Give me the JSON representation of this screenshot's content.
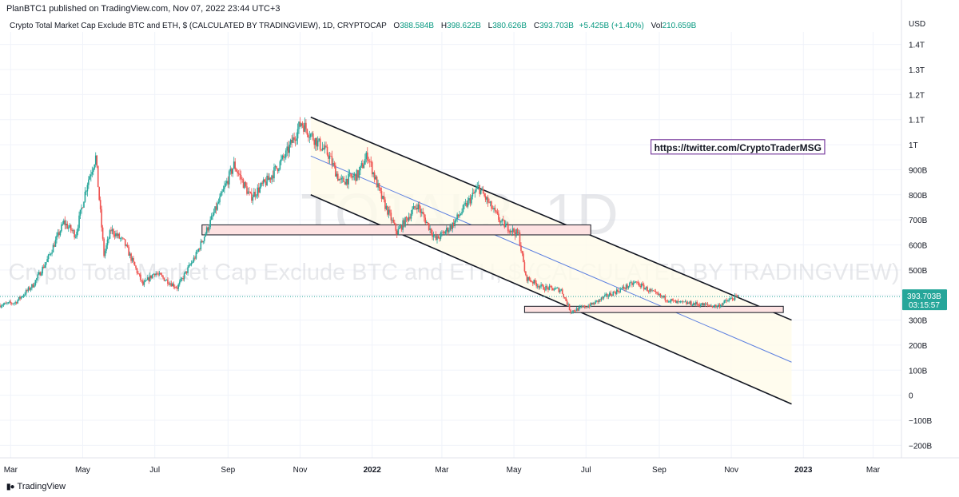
{
  "publisher": "PlanBTC1 published on TradingView.com, Nov 07, 2022 23:44 UTC+3",
  "legend": {
    "title": "Crypto Total Market Cap Exclude BTC and ETH, $ (CALCULATED BY TRADINGVIEW), 1D, CRYPTOCAP",
    "o_label": "O",
    "o_value": "388.584B",
    "h_label": "H",
    "h_value": "398.622B",
    "l_label": "L",
    "l_value": "380.626B",
    "c_label": "C",
    "c_value": "393.703B",
    "change": "+5.425B (+1.40%)",
    "vol_label": "Vol",
    "vol_value": "210.659B"
  },
  "footer": {
    "brand": "TradingView"
  },
  "colors": {
    "up": "#26a69a",
    "down": "#ef5350",
    "channel_line": "#131722",
    "midline": "#5b7fe0",
    "channel_fill": "#fffbea",
    "zone_fill": "#fde2e2",
    "price_label_bg": "#26a69a",
    "annotation_border": "#7b3fa0"
  },
  "chart_data": {
    "type": "candlestick",
    "title": "Crypto Total Market Cap Exclude BTC and ETH, $ (CALCULATED BY TRADINGVIEW), 1D, CRYPTOCAP",
    "watermark_symbol": "TOTAL3, 1D",
    "watermark_name": "Crypto Total Market Cap Exclude BTC and ETH, $ (CALCULATED BY TRADINGVIEW)",
    "y_unit": "USD",
    "y_range": [
      -250,
      1450
    ],
    "y_ticks": [
      {
        "v": 1400,
        "label": "1.4T"
      },
      {
        "v": 1300,
        "label": "1.3T"
      },
      {
        "v": 1200,
        "label": "1.2T"
      },
      {
        "v": 1100,
        "label": "1.1T"
      },
      {
        "v": 1000,
        "label": "1T"
      },
      {
        "v": 900,
        "label": "900B"
      },
      {
        "v": 800,
        "label": "800B"
      },
      {
        "v": 700,
        "label": "700B"
      },
      {
        "v": 600,
        "label": "600B"
      },
      {
        "v": 500,
        "label": "500B"
      },
      {
        "v": 400,
        "label": ""
      },
      {
        "v": 300,
        "label": "300B"
      },
      {
        "v": 200,
        "label": "200B"
      },
      {
        "v": 100,
        "label": "100B"
      },
      {
        "v": 0,
        "label": "0"
      },
      {
        "v": -100,
        "label": "−100B"
      },
      {
        "v": -200,
        "label": "−200B"
      }
    ],
    "x_range": [
      "2021-02-20",
      "2023-03-25"
    ],
    "x_ticks": [
      {
        "date": "2021-03-01",
        "label": "Mar",
        "bold": false
      },
      {
        "date": "2021-05-01",
        "label": "May",
        "bold": false
      },
      {
        "date": "2021-07-01",
        "label": "Jul",
        "bold": false
      },
      {
        "date": "2021-09-01",
        "label": "Sep",
        "bold": false
      },
      {
        "date": "2021-11-01",
        "label": "Nov",
        "bold": false
      },
      {
        "date": "2022-01-01",
        "label": "2022",
        "bold": true
      },
      {
        "date": "2022-03-01",
        "label": "Mar",
        "bold": false
      },
      {
        "date": "2022-05-01",
        "label": "May",
        "bold": false
      },
      {
        "date": "2022-07-01",
        "label": "Jul",
        "bold": false
      },
      {
        "date": "2022-09-01",
        "label": "Sep",
        "bold": false
      },
      {
        "date": "2022-11-01",
        "label": "Nov",
        "bold": false
      },
      {
        "date": "2023-01-01",
        "label": "2023",
        "bold": true
      },
      {
        "date": "2023-03-01",
        "label": "Mar",
        "bold": false
      }
    ],
    "price_path": [
      [
        "2021-02-20",
        360
      ],
      [
        "2021-03-05",
        370
      ],
      [
        "2021-03-20",
        440
      ],
      [
        "2021-04-01",
        540
      ],
      [
        "2021-04-15",
        690
      ],
      [
        "2021-04-25",
        640
      ],
      [
        "2021-05-05",
        850
      ],
      [
        "2021-05-12",
        950
      ],
      [
        "2021-05-19",
        560
      ],
      [
        "2021-05-25",
        660
      ],
      [
        "2021-06-05",
        610
      ],
      [
        "2021-06-21",
        440
      ],
      [
        "2021-07-01",
        490
      ],
      [
        "2021-07-20",
        430
      ],
      [
        "2021-08-05",
        560
      ],
      [
        "2021-08-25",
        780
      ],
      [
        "2021-09-06",
        920
      ],
      [
        "2021-09-20",
        790
      ],
      [
        "2021-10-05",
        860
      ],
      [
        "2021-10-20",
        960
      ],
      [
        "2021-11-02",
        1090
      ],
      [
        "2021-11-10",
        1040
      ],
      [
        "2021-11-25",
        960
      ],
      [
        "2021-12-05",
        850
      ],
      [
        "2021-12-20",
        880
      ],
      [
        "2021-12-28",
        960
      ],
      [
        "2022-01-08",
        800
      ],
      [
        "2022-01-22",
        650
      ],
      [
        "2022-02-08",
        760
      ],
      [
        "2022-02-24",
        620
      ],
      [
        "2022-03-10",
        680
      ],
      [
        "2022-04-01",
        830
      ],
      [
        "2022-04-20",
        690
      ],
      [
        "2022-05-05",
        640
      ],
      [
        "2022-05-11",
        470
      ],
      [
        "2022-05-25",
        430
      ],
      [
        "2022-06-10",
        420
      ],
      [
        "2022-06-18",
        335
      ],
      [
        "2022-07-05",
        360
      ],
      [
        "2022-07-20",
        400
      ],
      [
        "2022-08-12",
        450
      ],
      [
        "2022-08-30",
        400
      ],
      [
        "2022-09-15",
        370
      ],
      [
        "2022-10-01",
        365
      ],
      [
        "2022-10-20",
        355
      ],
      [
        "2022-11-01",
        385
      ],
      [
        "2022-11-07",
        393.7
      ]
    ],
    "last": {
      "value": 393.703,
      "label": "393.703B",
      "countdown": "03:15:57"
    },
    "channel": {
      "upper": [
        [
          "2021-11-10",
          1110
        ],
        [
          "2022-12-22",
          300
        ]
      ],
      "lower": [
        [
          "2021-11-10",
          800
        ],
        [
          "2022-12-22",
          -35
        ]
      ],
      "mid": [
        [
          "2021-11-10",
          955
        ],
        [
          "2022-12-22",
          132
        ]
      ]
    },
    "zones": [
      {
        "from": "2021-08-10",
        "to": "2022-07-05",
        "high": 680,
        "low": 640
      },
      {
        "from": "2022-05-10",
        "to": "2022-12-15",
        "high": 355,
        "low": 330
      }
    ],
    "annotation": {
      "text": "https://twitter.com/CryptoTraderMSG",
      "date": "2022-08-25",
      "value": 985
    }
  }
}
